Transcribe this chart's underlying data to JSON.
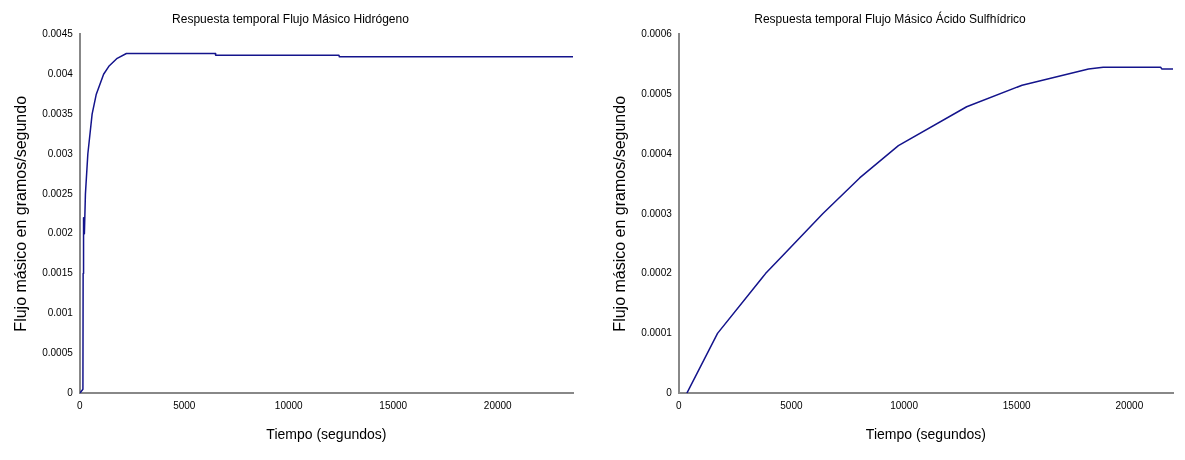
{
  "chart_data": [
    {
      "type": "line",
      "title": "Respuesta temporal Flujo Másico Hidrógeno",
      "xlabel": "Tiempo (segundos)",
      "ylabel": "Flujo másico en gramos/segundo",
      "color": "#14148c",
      "grid": false,
      "x": [
        0,
        150,
        160,
        180,
        220,
        270,
        385,
        590,
        790,
        1140,
        1390,
        1790,
        2230,
        6480,
        6500,
        12400,
        12420,
        23600
      ],
      "values": [
        0,
        5e-05,
        0.0015,
        0.0022,
        0.002,
        0.0025,
        0.003,
        0.0035,
        0.00375,
        0.004,
        0.0041,
        0.0042,
        0.00426,
        0.00426,
        0.00424,
        0.00424,
        0.00422,
        0.00422
      ],
      "xlim": [
        0,
        23600
      ],
      "xticks": [
        0,
        5000,
        10000,
        15000,
        20000
      ],
      "ylim": [
        0,
        0.0045
      ],
      "yticks": [
        0,
        0.0005,
        0.001,
        0.0015,
        0.002,
        0.0025,
        0.003,
        0.0035,
        0.004,
        0.0045
      ]
    },
    {
      "type": "line",
      "title": "Respuesta temporal Flujo Másico Ácido Sulfhídrico",
      "xlabel": "Tiempo (segundos)",
      "ylabel": "Flujo másico en gramos/segundo",
      "color": "#14148c",
      "grid": false,
      "x": [
        360,
        1720,
        3850,
        6390,
        8030,
        9750,
        12780,
        15240,
        18190,
        18840,
        21390,
        21450,
        21940
      ],
      "values": [
        0,
        0.0001,
        0.0002,
        0.0003,
        0.00036,
        0.000414,
        0.000479,
        0.000515,
        0.000542,
        0.000545,
        0.000545,
        0.000542,
        0.000542
      ],
      "xlim": [
        0,
        21940
      ],
      "xticks": [
        0,
        5000,
        10000,
        15000,
        20000
      ],
      "ylim": [
        0,
        0.0006
      ],
      "yticks": [
        0,
        0.0001,
        0.0002,
        0.0003,
        0.0004,
        0.0005,
        0.0006
      ]
    }
  ]
}
